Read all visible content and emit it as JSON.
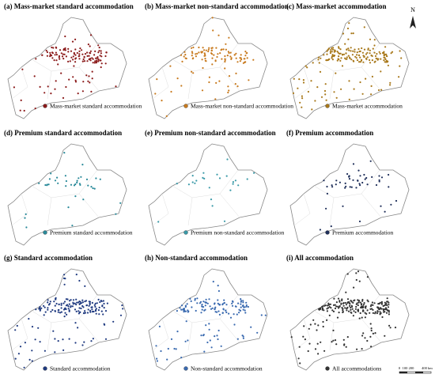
{
  "panels": [
    {
      "title": "(a) Mass-market standard accommodation",
      "legend": "Mass-market standard accommodation",
      "color": "#8b1a1a"
    },
    {
      "title": "(b) Mass-market non-standard accommodation",
      "legend": "Mass-market non-standard accommodation",
      "color": "#c87a1e"
    },
    {
      "title": "(c) Mass-market accommodation",
      "legend": "Mass-market accommodation",
      "color": "#a8781a"
    },
    {
      "title": "(d) Premium standard accommodation",
      "legend": "Premium standard accommodation",
      "color": "#2a8a9a"
    },
    {
      "title": "(e) Premium non-standard accommodation",
      "legend": "Premium non-standard accommodation",
      "color": "#3a9aa8"
    },
    {
      "title": "(f) Premium accommodation",
      "legend": "Premium accommodation",
      "color": "#1f2f5a"
    },
    {
      "title": "(g) Standard accommodation",
      "legend": "Standard accommodation",
      "color": "#1f3a80"
    },
    {
      "title": "(h) Non-standard accommodation",
      "legend": "Non-standard accommodation",
      "color": "#3a6ab0"
    },
    {
      "title": "(i) All accommodation",
      "legend": "All accommodations",
      "color": "#333333"
    }
  ],
  "north_arrow": "N",
  "scale_bar": [
    "0",
    "100",
    "200",
    "400 km"
  ]
}
